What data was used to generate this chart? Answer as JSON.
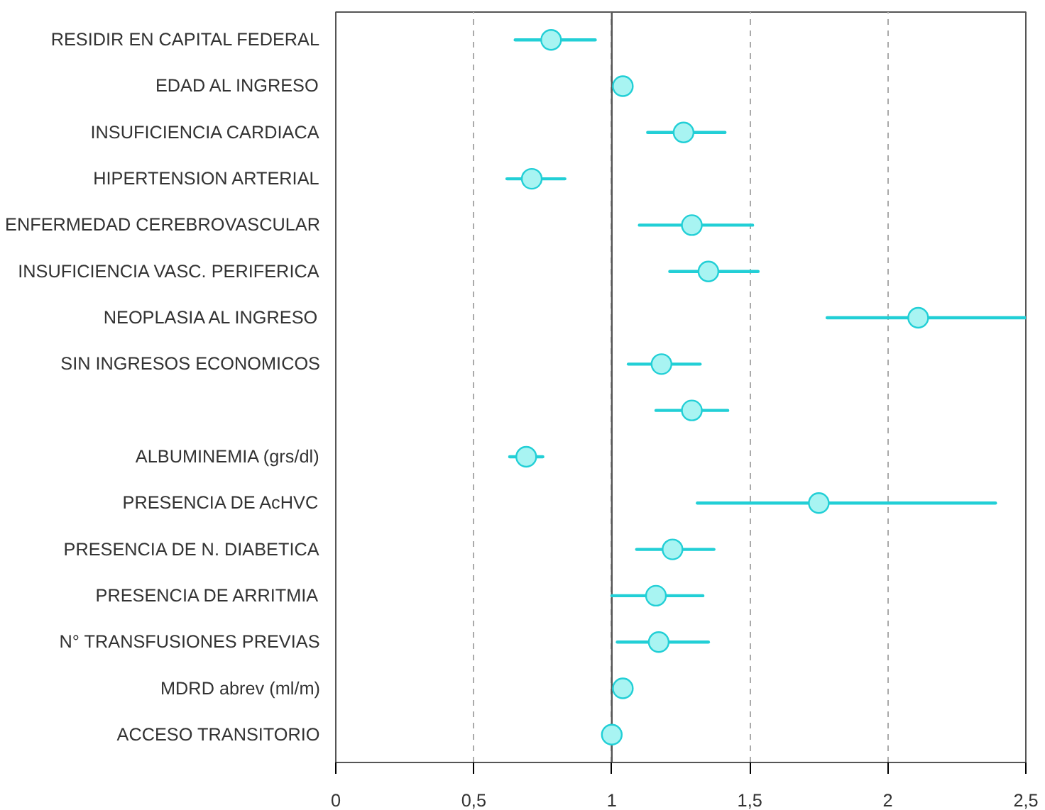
{
  "chart_data": {
    "type": "scatter",
    "orientation": "horizontal",
    "categories": [
      "RESIDIR EN CAPITAL FEDERAL",
      "EDAD AL INGRESO",
      "INSUFICIENCIA CARDIACA",
      "HIPERTENSION ARTERIAL",
      "ENFERMEDAD CEREBROVASCULAR",
      "INSUFICIENCIA VASC. PERIFERICA",
      "NEOPLASIA AL INGRESO",
      "SIN INGRESOS ECONOMICOS",
      null,
      "ALBUMINEMIA (grs/dl)",
      "PRESENCIA DE AcHVC",
      "PRESENCIA DE N. DIABETICA",
      "PRESENCIA DE ARRITMIA",
      "N° TRANSFUSIONES PREVIAS",
      "MDRD abrev (ml/m)",
      "ACCESO TRANSITORIO"
    ],
    "values": [
      0.78,
      1.04,
      1.26,
      0.71,
      1.29,
      1.35,
      2.11,
      1.18,
      1.29,
      0.69,
      1.75,
      1.22,
      1.16,
      1.17,
      1.04,
      1.0
    ],
    "errors": [
      [
        0.65,
        0.94
      ],
      null,
      [
        1.13,
        1.41
      ],
      [
        0.62,
        0.83
      ],
      [
        1.1,
        1.51
      ],
      [
        1.21,
        1.53
      ],
      [
        1.78,
        2.5
      ],
      [
        1.06,
        1.32
      ],
      [
        1.16,
        1.42
      ],
      [
        0.63,
        0.75
      ],
      [
        1.31,
        2.39
      ],
      [
        1.09,
        1.37
      ],
      [
        1.0,
        1.33
      ],
      [
        1.02,
        1.35
      ],
      null,
      null
    ],
    "color": "#22cfd6",
    "marker": "circle",
    "xlim": [
      0,
      2.5
    ],
    "xticks": [
      0,
      {
        "value": 0.5,
        "label": "0,5"
      },
      1,
      {
        "value": 1.5,
        "label": "1,5"
      },
      2,
      {
        "value": 2.5,
        "label": "2,5"
      }
    ],
    "grid": "x",
    "ref_lines": [
      {
        "axis": "x",
        "value": 1,
        "color": "#555555",
        "line_style": "solid"
      }
    ]
  }
}
